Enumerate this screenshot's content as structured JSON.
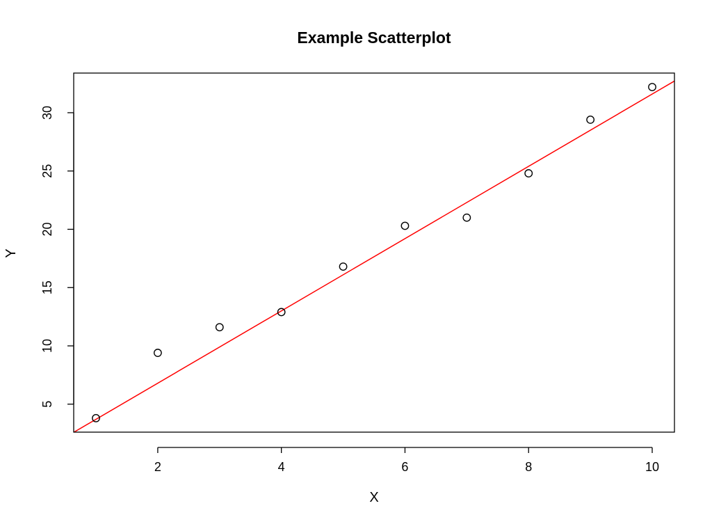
{
  "chart_data": {
    "type": "scatter",
    "title": "Example Scatterplot",
    "xlabel": "X",
    "ylabel": "Y",
    "xlim": [
      0.64,
      10.36
    ],
    "ylim": [
      2.6,
      33.4
    ],
    "x_ticks": [
      2,
      4,
      6,
      8,
      10
    ],
    "y_ticks": [
      5,
      10,
      15,
      20,
      25,
      30
    ],
    "x_tick_labels": [
      "2",
      "4",
      "6",
      "8",
      "10"
    ],
    "y_tick_labels": [
      "5",
      "10",
      "15",
      "20",
      "25",
      "30"
    ],
    "grid": false,
    "legend": "none",
    "series": [
      {
        "x": [
          1,
          2,
          3,
          4,
          5,
          6,
          7,
          8,
          9,
          10
        ],
        "y": [
          3.8,
          9.4,
          11.6,
          12.9,
          16.8,
          20.3,
          21.0,
          24.8,
          29.4,
          32.2
        ],
        "marker": "open-circle",
        "color": "#000000"
      }
    ],
    "regression_line": {
      "intercept": 0.6,
      "slope": 3.1,
      "color": "#ff0000"
    }
  }
}
